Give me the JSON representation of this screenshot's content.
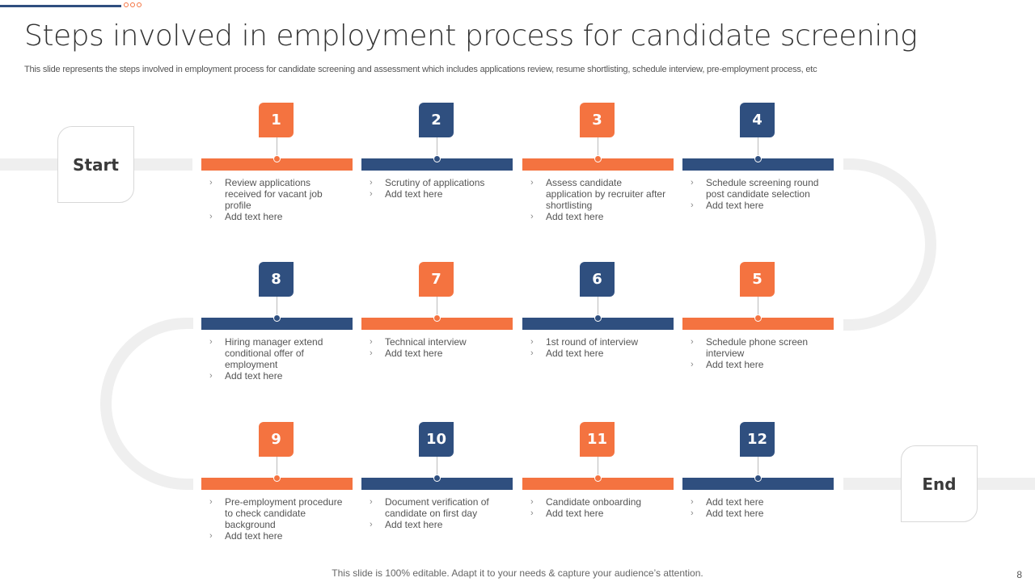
{
  "title": "Steps involved in employment process for candidate screening",
  "subtitle": "This slide represents the steps involved in employment process for candidate screening and assessment which includes applications review, resume shortlisting, schedule interview, pre-employment process, etc",
  "start_label": "Start",
  "end_label": "End",
  "colors": {
    "orange": "#f47340",
    "navy": "#2f4f7f",
    "track": "#efefef"
  },
  "rows": [
    [
      {
        "number": "1",
        "color": "orange",
        "items": [
          "Review applications received for vacant job profile",
          "Add text here"
        ]
      },
      {
        "number": "2",
        "color": "navy",
        "items": [
          "Scrutiny of applications",
          "Add text here"
        ]
      },
      {
        "number": "3",
        "color": "orange",
        "items": [
          "Assess candidate application by recruiter after shortlisting",
          "Add text here"
        ]
      },
      {
        "number": "4",
        "color": "navy",
        "items": [
          "Schedule screening round post candidate selection",
          "Add text here"
        ]
      }
    ],
    [
      {
        "number": "8",
        "color": "navy",
        "items": [
          "Hiring manager extend conditional offer of employment",
          "Add text here"
        ]
      },
      {
        "number": "7",
        "color": "orange",
        "items": [
          "Technical interview",
          "Add text here"
        ]
      },
      {
        "number": "6",
        "color": "navy",
        "items": [
          "1st round of interview",
          "Add text here"
        ]
      },
      {
        "number": "5",
        "color": "orange",
        "items": [
          "Schedule phone screen interview",
          "Add text here"
        ]
      }
    ],
    [
      {
        "number": "9",
        "color": "orange",
        "items": [
          "Pre-employment procedure to check candidate background",
          "Add text here"
        ]
      },
      {
        "number": "10",
        "color": "navy",
        "items": [
          "Document verification of candidate on first day",
          "Add text here"
        ]
      },
      {
        "number": "11",
        "color": "orange",
        "items": [
          "Candidate onboarding",
          "Add text here"
        ]
      },
      {
        "number": "12",
        "color": "navy",
        "items": [
          "Add text here",
          "Add text here"
        ]
      }
    ]
  ],
  "footer": "This slide is 100% editable. Adapt it to your needs & capture your audience’s attention.",
  "page_number": "8"
}
